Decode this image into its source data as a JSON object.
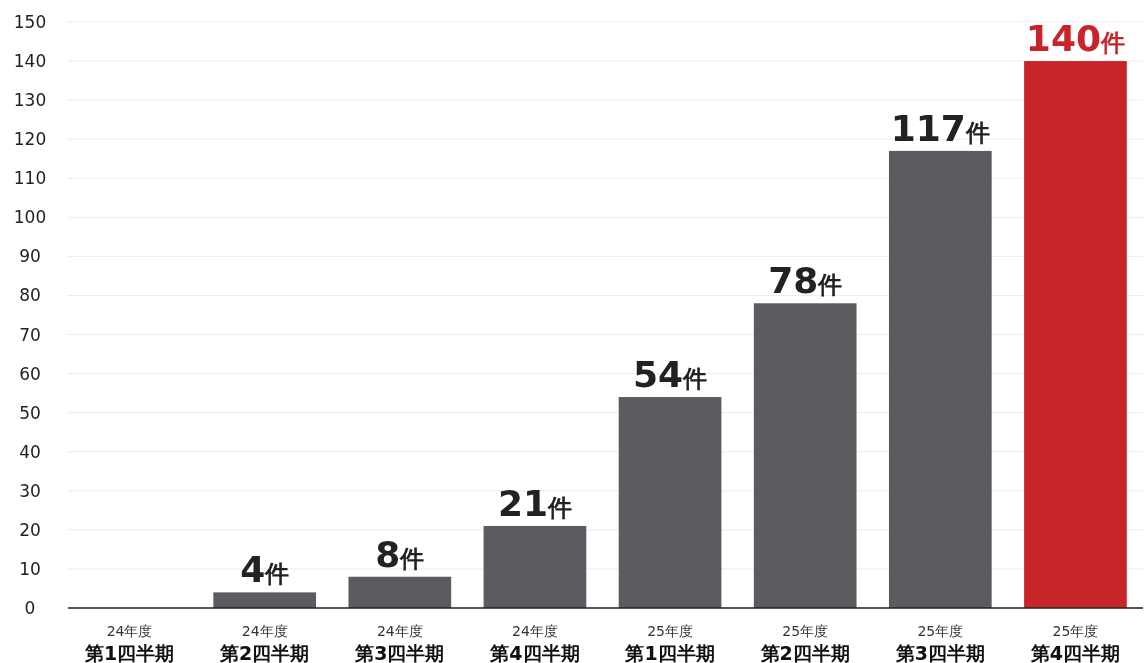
{
  "chart_data": {
    "type": "bar",
    "categories": [
      "24年度第1四半期",
      "24年度第2四半期",
      "24年度第3四半期",
      "24年度第4四半期",
      "25年度第1四半期",
      "25年度第2四半期",
      "25年度第3四半期",
      "25年度第4四半期"
    ],
    "values": [
      null,
      4,
      8,
      21,
      54,
      78,
      117,
      140
    ],
    "colors": [
      "#5b5c60",
      "#5b5c60",
      "#5b5c60",
      "#5b5c60",
      "#5b5c60",
      "#5b5c60",
      "#5b5c60",
      "#c8252b"
    ],
    "value_labels": [
      null,
      "4件",
      "8件",
      "21件",
      "54件",
      "78件",
      "117件",
      "140件"
    ],
    "ylim": [
      0,
      150
    ],
    "yticks": [
      0,
      10,
      20,
      30,
      40,
      50,
      60,
      70,
      80,
      90,
      100,
      110,
      120,
      130,
      140,
      150
    ],
    "grid": "y"
  }
}
